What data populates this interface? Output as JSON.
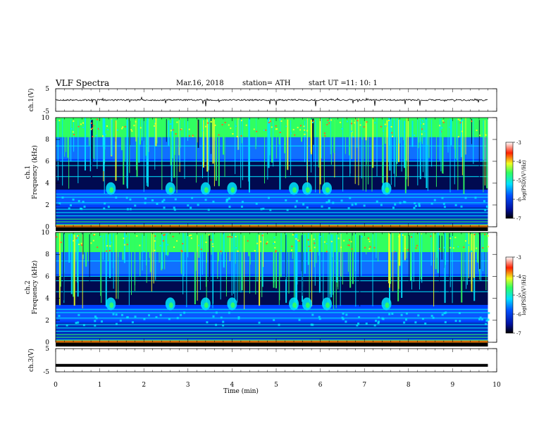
{
  "header": {
    "title": "VLF  Spectra",
    "date": "Mar.16, 2018",
    "station": "station= ATH",
    "start_label": "start  UT  =",
    "start_time": "11: 10: 1"
  },
  "chart_data": [
    {
      "name": "ch1-waveform",
      "type": "line",
      "ylabel": "ch.1(V)",
      "ylim": [
        -5,
        5
      ],
      "yticks": [
        "5",
        "-5"
      ],
      "xlim": [
        0,
        10
      ],
      "trace_color": "#000000",
      "description_level": 0
    },
    {
      "name": "ch1-spectrogram",
      "type": "heatmap",
      "ylabel_line1": "ch.1",
      "ylabel_line2": "Frequency  (kHz)",
      "ylim": [
        0,
        10
      ],
      "yticks": [
        "0",
        "2",
        "4",
        "6",
        "8",
        "10"
      ],
      "xlim": [
        0,
        10
      ],
      "data_end_min": 9.8,
      "colorbar": {
        "label": "log(PSD)(V²/Hz)",
        "range": [
          -7,
          -3
        ],
        "ticks": [
          "-3",
          "-4",
          "-5",
          "-6",
          "-7"
        ]
      }
    },
    {
      "name": "ch2-spectrogram",
      "type": "heatmap",
      "ylabel_line1": "ch.2",
      "ylabel_line2": "Frequency  (kHz)",
      "ylim": [
        0,
        10
      ],
      "yticks": [
        "0",
        "2",
        "4",
        "6",
        "8",
        "10"
      ],
      "xlim": [
        0,
        10
      ],
      "data_end_min": 9.8,
      "colorbar": {
        "label": "log(PSD)(V²/Hz)",
        "range": [
          -7,
          -3
        ],
        "ticks": [
          "-3",
          "-4",
          "-5",
          "-6",
          "-7"
        ]
      }
    },
    {
      "name": "ch3-waveform",
      "type": "line",
      "ylabel": "ch.3(V)",
      "ylim": [
        -5,
        5
      ],
      "yticks": [
        "5",
        "-5"
      ],
      "xlim": [
        0,
        10
      ],
      "level": -2.2,
      "trace_color": "#000000"
    }
  ],
  "x_axis": {
    "label": "Time  (min)",
    "range": [
      0,
      10
    ],
    "ticks": [
      "0",
      "1",
      "2",
      "3",
      "4",
      "5",
      "6",
      "7",
      "8",
      "9",
      "10"
    ]
  },
  "colors": {
    "dark": "#000a50",
    "mid_blue": "#0040ff",
    "cyan": "#00e6ff",
    "green": "#30ff60",
    "yellow": "#f0ff20",
    "red": "#ff2000"
  }
}
